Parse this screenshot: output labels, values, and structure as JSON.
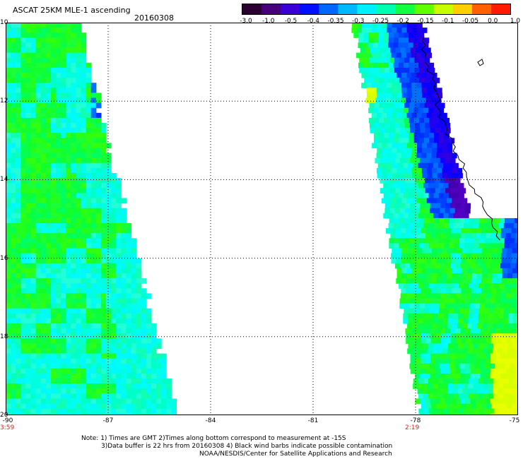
{
  "header": {
    "title": "ASCAT 25KM MLE-1 ascending",
    "date": "20160308"
  },
  "colorbar": {
    "labels": [
      "-3.0",
      "-1.0",
      "-0.5",
      "-0.4",
      "-0.35",
      "-0.3",
      "-0.25",
      "-0.2",
      "-0.15",
      "-0.1",
      "-0.05",
      "0.0",
      "1.0"
    ],
    "colors": [
      "#2a0030",
      "#48007a",
      "#3a00d8",
      "#0010ff",
      "#0068ff",
      "#00b8ff",
      "#00f0ff",
      "#00ffb0",
      "#10ff40",
      "#60ff00",
      "#c8ff00",
      "#ffd000",
      "#ff6000",
      "#ff1a00"
    ]
  },
  "map": {
    "lat_labels": [
      "10",
      "12",
      "14",
      "16",
      "18",
      "20"
    ],
    "lon_labels": [
      "-90",
      "-87",
      "-84",
      "-81",
      "-78",
      "-75"
    ],
    "lat_range": [
      10,
      20
    ],
    "lon_range": [
      -90,
      -75
    ],
    "swath_times": [
      "3:59",
      "2:19"
    ]
  },
  "notes": [
    "Note: 1) Times are GMT 2)Times along bottom correspond to measurement at -15S",
    "3)Data buffer is 22 hrs from 20160308 4) Black wind barbs indicate possible contamination",
    "NOAA/NESDIS/Center for Satellite Applications and Research"
  ]
}
